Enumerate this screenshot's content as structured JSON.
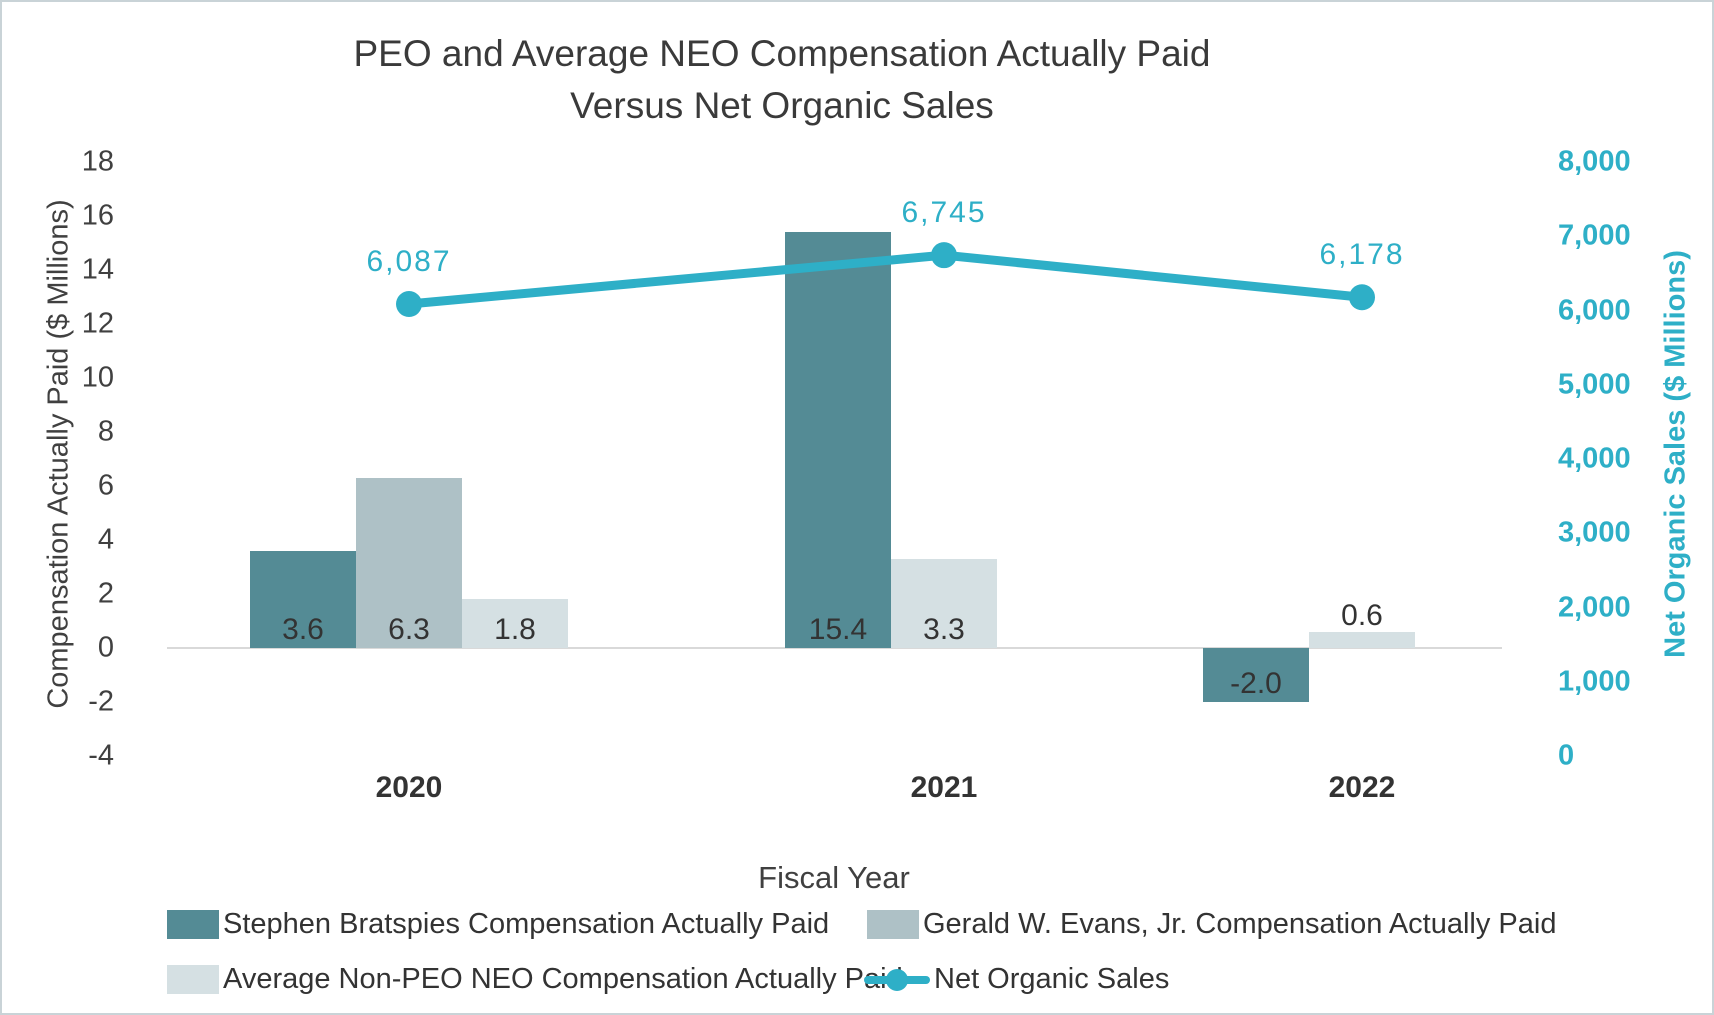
{
  "chart_data": {
    "type": "bar+line",
    "title_line1": "PEO and Average NEO Compensation Actually Paid",
    "title_line2": "Versus Net Organic Sales",
    "categories": [
      "2020",
      "2021",
      "2022"
    ],
    "series": [
      {
        "name": "Stephen Bratspies Compensation Actually Paid",
        "type": "bar",
        "color": "#548B95",
        "axis": "left",
        "values": [
          3.6,
          15.4,
          -2.0
        ],
        "labels": [
          "3.6",
          "15.4",
          "-2.0"
        ]
      },
      {
        "name": "Gerald W. Evans, Jr. Compensation Actually Paid",
        "type": "bar",
        "color": "#AEC1C6",
        "axis": "left",
        "values": [
          6.3,
          null,
          null
        ],
        "labels": [
          "6.3",
          null,
          null
        ]
      },
      {
        "name": "Average Non-PEO NEO Compensation Actually Paid",
        "type": "bar",
        "color": "#D5E0E3",
        "axis": "left",
        "values": [
          1.8,
          3.3,
          0.6
        ],
        "labels": [
          "1.8",
          "3.3",
          "0.6"
        ]
      },
      {
        "name": "Net Organic Sales",
        "type": "line",
        "color": "#2EAFC7",
        "axis": "right",
        "values": [
          6087,
          6745,
          6178
        ],
        "labels": [
          "6,087",
          "6,745",
          "6,178"
        ]
      }
    ],
    "axes": {
      "left": {
        "label": "Compensation Actually Paid ($ Millions)",
        "min": -4,
        "max": 18,
        "step": 2,
        "ticks": [
          "18",
          "16",
          "14",
          "12",
          "10",
          "8",
          "6",
          "4",
          "2",
          "0",
          "-2",
          "-4"
        ]
      },
      "right": {
        "label": "Net Organic Sales ($ Millions)",
        "min": 0,
        "max": 8000,
        "step": 1000,
        "ticks": [
          "8,000",
          "7,000",
          "6,000",
          "5,000",
          "4,000",
          "3,000",
          "2,000",
          "1,000",
          "0"
        ]
      },
      "x": {
        "label": "Fiscal Year"
      }
    },
    "legend": [
      {
        "label": "Stephen Bratspies Compensation Actually Paid",
        "series_index": 0,
        "marker": "swatch"
      },
      {
        "label": "Gerald W. Evans, Jr. Compensation Actually Paid",
        "series_index": 1,
        "marker": "swatch"
      },
      {
        "label": "Average Non-PEO NEO Compensation Actually Paid",
        "series_index": 2,
        "marker": "swatch"
      },
      {
        "label": "Net Organic Sales",
        "series_index": 3,
        "marker": "line"
      }
    ],
    "grid": "zero-line-only",
    "legend_position": "bottom",
    "colors": {
      "accent_teal": "#2EAFC7",
      "bar_dark": "#548B95",
      "bar_medium": "#AEC1C6",
      "bar_light": "#D5E0E3",
      "text_dark": "#333333",
      "gridline": "#D9D9D9"
    }
  }
}
